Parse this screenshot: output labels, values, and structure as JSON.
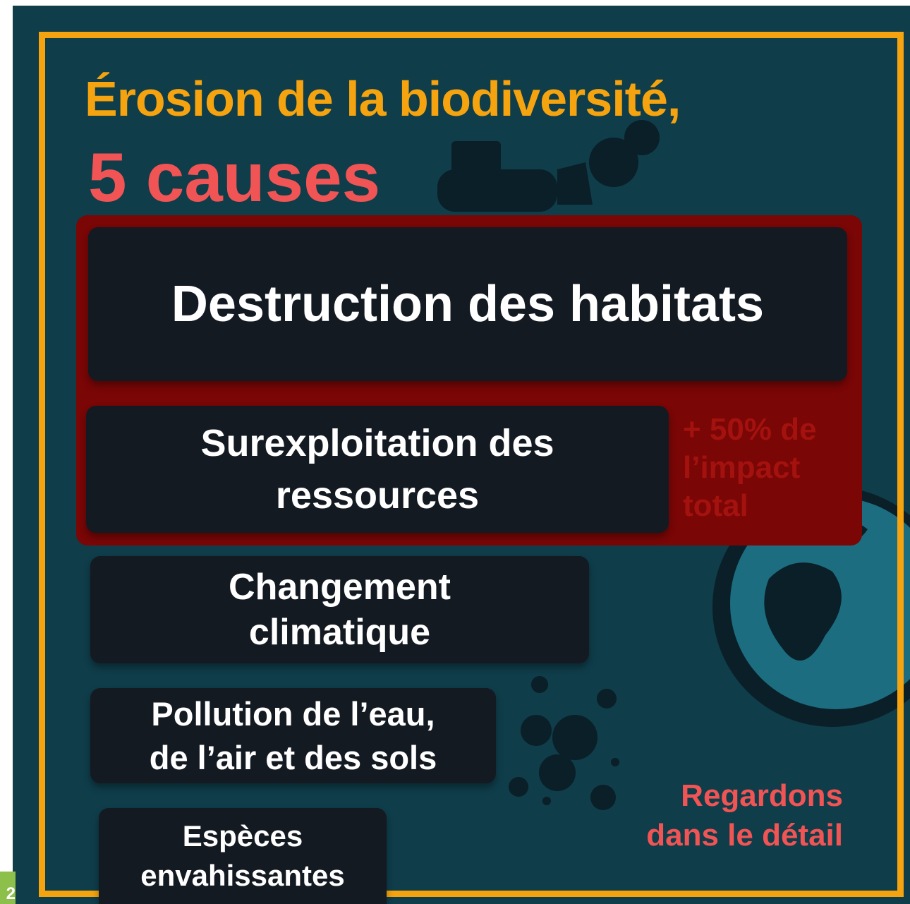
{
  "title": {
    "line1": "Érosion de la biodiversité,",
    "line2": "5 causes"
  },
  "causes": [
    {
      "lines": [
        "Destruction des habitats"
      ]
    },
    {
      "lines": [
        "Surexploitation des",
        "ressources"
      ]
    },
    {
      "lines": [
        "Changement",
        "climatique"
      ]
    },
    {
      "lines": [
        "Pollution de l’eau,",
        "de l’air et des sols"
      ]
    },
    {
      "lines": [
        "Espèces",
        "envahissantes"
      ]
    }
  ],
  "note": {
    "lines": [
      "+ 50% de",
      "l’impact",
      "total"
    ]
  },
  "cta": {
    "lines": [
      "Regardons",
      "dans le détail"
    ]
  },
  "page_number": "2"
}
